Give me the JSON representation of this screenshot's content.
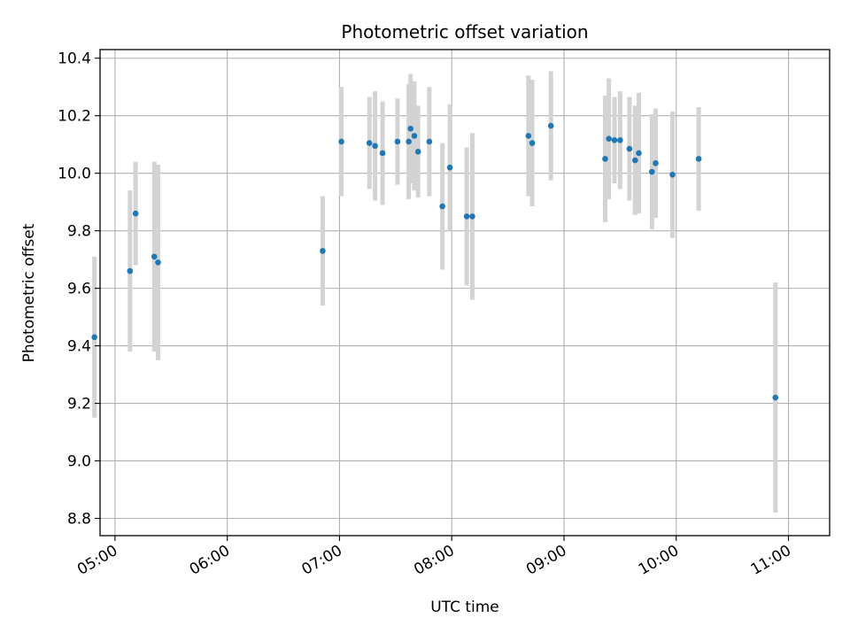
{
  "chart_data": {
    "type": "scatter",
    "title": "Photometric offset variation",
    "xlabel": "UTC time",
    "ylabel": "Photometric offset",
    "x_axis_type": "time",
    "xlim": [
      "04:52",
      "11:22"
    ],
    "ylim": [
      8.74,
      10.43
    ],
    "x_ticks": [
      "05:00",
      "06:00",
      "07:00",
      "08:00",
      "09:00",
      "10:00",
      "11:00"
    ],
    "y_ticks": [
      8.8,
      9.0,
      9.2,
      9.4,
      9.6,
      9.8,
      10.0,
      10.2,
      10.4
    ],
    "y_tick_labels": [
      "8.8",
      "9.0",
      "9.2",
      "9.4",
      "9.6",
      "9.8",
      "10.0",
      "10.2",
      "10.4"
    ],
    "grid": true,
    "marker_color": "#1f77b4",
    "errorbar_color": "#d3d3d3",
    "points": [
      {
        "t": "04:49",
        "y": 9.43,
        "err": 0.28
      },
      {
        "t": "05:08",
        "y": 9.66,
        "err": 0.28
      },
      {
        "t": "05:11",
        "y": 9.86,
        "err": 0.18
      },
      {
        "t": "05:21",
        "y": 9.71,
        "err": 0.33
      },
      {
        "t": "05:23",
        "y": 9.69,
        "err": 0.34
      },
      {
        "t": "06:51",
        "y": 9.73,
        "err": 0.19
      },
      {
        "t": "07:01",
        "y": 10.11,
        "err": 0.19
      },
      {
        "t": "07:16",
        "y": 10.105,
        "err": 0.16
      },
      {
        "t": "07:19",
        "y": 10.095,
        "err": 0.19
      },
      {
        "t": "07:23",
        "y": 10.07,
        "err": 0.18
      },
      {
        "t": "07:31",
        "y": 10.11,
        "err": 0.15
      },
      {
        "t": "07:37",
        "y": 10.11,
        "err": 0.2
      },
      {
        "t": "07:38",
        "y": 10.155,
        "err": 0.19
      },
      {
        "t": "07:40",
        "y": 10.13,
        "err": 0.19
      },
      {
        "t": "07:42",
        "y": 10.075,
        "err": 0.16
      },
      {
        "t": "07:48",
        "y": 10.11,
        "err": 0.19
      },
      {
        "t": "07:55",
        "y": 9.885,
        "err": 0.22
      },
      {
        "t": "07:59",
        "y": 10.02,
        "err": 0.22
      },
      {
        "t": "08:08",
        "y": 9.85,
        "err": 0.24
      },
      {
        "t": "08:11",
        "y": 9.85,
        "err": 0.29
      },
      {
        "t": "08:41",
        "y": 10.13,
        "err": 0.21
      },
      {
        "t": "08:43",
        "y": 10.105,
        "err": 0.22
      },
      {
        "t": "08:53",
        "y": 10.165,
        "err": 0.19
      },
      {
        "t": "09:22",
        "y": 10.05,
        "err": 0.22
      },
      {
        "t": "09:24",
        "y": 10.12,
        "err": 0.21
      },
      {
        "t": "09:27",
        "y": 10.115,
        "err": 0.15
      },
      {
        "t": "09:30",
        "y": 10.115,
        "err": 0.17
      },
      {
        "t": "09:35",
        "y": 10.085,
        "err": 0.18
      },
      {
        "t": "09:38",
        "y": 10.045,
        "err": 0.19
      },
      {
        "t": "09:40",
        "y": 10.07,
        "err": 0.21
      },
      {
        "t": "09:47",
        "y": 10.005,
        "err": 0.2
      },
      {
        "t": "09:49",
        "y": 10.035,
        "err": 0.19
      },
      {
        "t": "09:58",
        "y": 9.995,
        "err": 0.22
      },
      {
        "t": "10:12",
        "y": 10.05,
        "err": 0.18
      },
      {
        "t": "10:53",
        "y": 9.22,
        "err": 0.4
      }
    ]
  }
}
